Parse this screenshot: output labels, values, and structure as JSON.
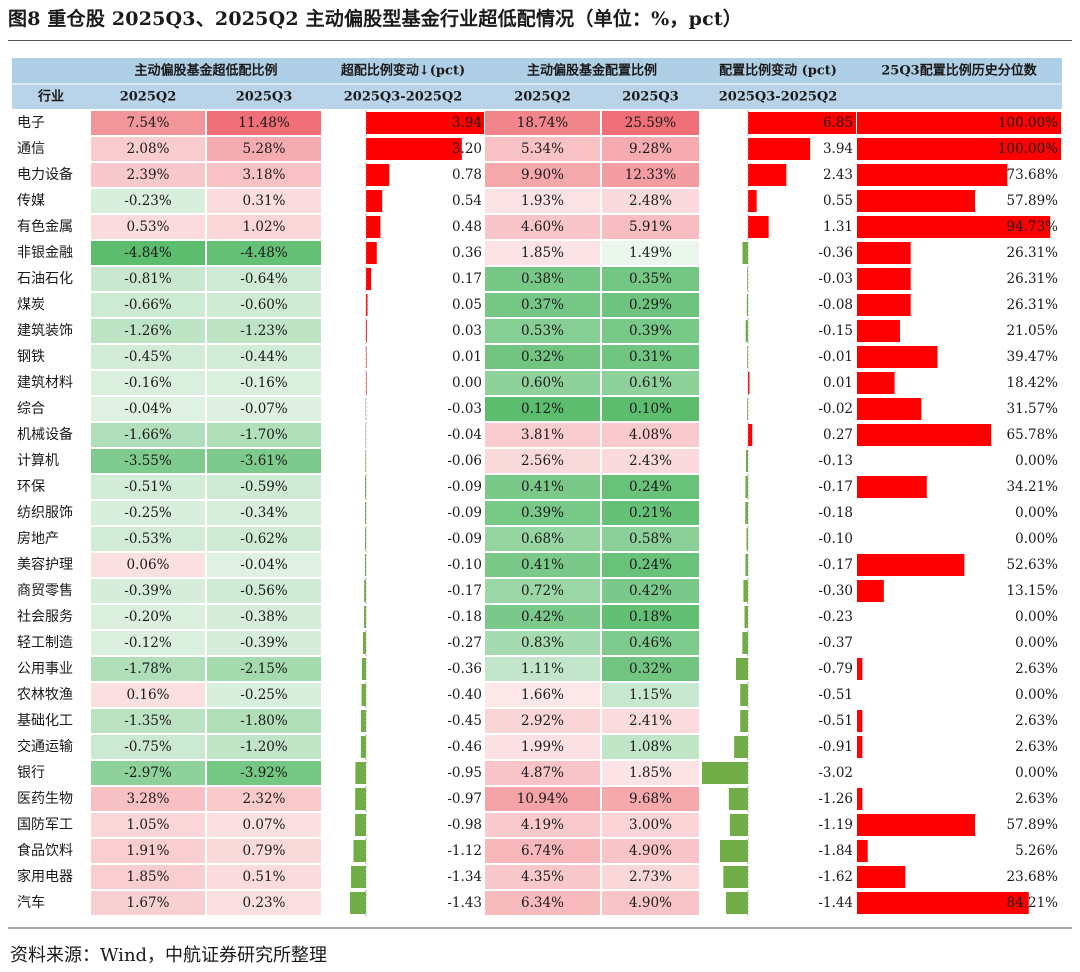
{
  "title": "图8  重仓股 2025Q3、2025Q2 主动偏股型基金行业超低配情况（单位：%，pct）",
  "source": "资料来源：Wind，中航证券研究所整理",
  "colors": {
    "header_bg": "#afcfe6",
    "header_bg2": "#b9d3e8",
    "pos_strong": "#ee6f76",
    "neg_strong": "#5cbd6e",
    "bar_red": "#ff0000",
    "bar_green": "#70ad47"
  },
  "chart_data": {
    "type": "table",
    "header_groups": [
      "主动偏股基金超低配比例",
      "超配比例变动↓(pct)",
      "主动偏股基金配置比例",
      "配置比例变动 (pct)",
      "25Q3配置比例历史分位数"
    ],
    "columns": [
      "行业",
      "2025Q2",
      "2025Q3",
      "2025Q3-2025Q2",
      "2025Q2",
      "2025Q3",
      "2025Q3-2025Q2",
      ""
    ],
    "rows": [
      {
        "industry": "电子",
        "ow_q2": "7.54%",
        "ow_q3": "11.48%",
        "ow_chg": "3.94",
        "al_q2": "18.74%",
        "al_q3": "25.59%",
        "al_chg": "6.85",
        "pct": "100.00%"
      },
      {
        "industry": "通信",
        "ow_q2": "2.08%",
        "ow_q3": "5.28%",
        "ow_chg": "3.20",
        "al_q2": "5.34%",
        "al_q3": "9.28%",
        "al_chg": "3.94",
        "pct": "100.00%"
      },
      {
        "industry": "电力设备",
        "ow_q2": "2.39%",
        "ow_q3": "3.18%",
        "ow_chg": "0.78",
        "al_q2": "9.90%",
        "al_q3": "12.33%",
        "al_chg": "2.43",
        "pct": "73.68%"
      },
      {
        "industry": "传媒",
        "ow_q2": "-0.23%",
        "ow_q3": "0.31%",
        "ow_chg": "0.54",
        "al_q2": "1.93%",
        "al_q3": "2.48%",
        "al_chg": "0.55",
        "pct": "57.89%"
      },
      {
        "industry": "有色金属",
        "ow_q2": "0.53%",
        "ow_q3": "1.02%",
        "ow_chg": "0.48",
        "al_q2": "4.60%",
        "al_q3": "5.91%",
        "al_chg": "1.31",
        "pct": "94.73%"
      },
      {
        "industry": "非银金融",
        "ow_q2": "-4.84%",
        "ow_q3": "-4.48%",
        "ow_chg": "0.36",
        "al_q2": "1.85%",
        "al_q3": "1.49%",
        "al_chg": "-0.36",
        "pct": "26.31%"
      },
      {
        "industry": "石油石化",
        "ow_q2": "-0.81%",
        "ow_q3": "-0.64%",
        "ow_chg": "0.17",
        "al_q2": "0.38%",
        "al_q3": "0.35%",
        "al_chg": "-0.03",
        "pct": "26.31%"
      },
      {
        "industry": "煤炭",
        "ow_q2": "-0.66%",
        "ow_q3": "-0.60%",
        "ow_chg": "0.05",
        "al_q2": "0.37%",
        "al_q3": "0.29%",
        "al_chg": "-0.08",
        "pct": "26.31%"
      },
      {
        "industry": "建筑装饰",
        "ow_q2": "-1.26%",
        "ow_q3": "-1.23%",
        "ow_chg": "0.03",
        "al_q2": "0.53%",
        "al_q3": "0.39%",
        "al_chg": "-0.15",
        "pct": "21.05%"
      },
      {
        "industry": "钢铁",
        "ow_q2": "-0.45%",
        "ow_q3": "-0.44%",
        "ow_chg": "0.01",
        "al_q2": "0.32%",
        "al_q3": "0.31%",
        "al_chg": "-0.01",
        "pct": "39.47%"
      },
      {
        "industry": "建筑材料",
        "ow_q2": "-0.16%",
        "ow_q3": "-0.16%",
        "ow_chg": "0.00",
        "al_q2": "0.60%",
        "al_q3": "0.61%",
        "al_chg": "0.01",
        "pct": "18.42%"
      },
      {
        "industry": "综合",
        "ow_q2": "-0.04%",
        "ow_q3": "-0.07%",
        "ow_chg": "-0.03",
        "al_q2": "0.12%",
        "al_q3": "0.10%",
        "al_chg": "-0.02",
        "pct": "31.57%"
      },
      {
        "industry": "机械设备",
        "ow_q2": "-1.66%",
        "ow_q3": "-1.70%",
        "ow_chg": "-0.04",
        "al_q2": "3.81%",
        "al_q3": "4.08%",
        "al_chg": "0.27",
        "pct": "65.78%"
      },
      {
        "industry": "计算机",
        "ow_q2": "-3.55%",
        "ow_q3": "-3.61%",
        "ow_chg": "-0.06",
        "al_q2": "2.56%",
        "al_q3": "2.43%",
        "al_chg": "-0.13",
        "pct": "0.00%"
      },
      {
        "industry": "环保",
        "ow_q2": "-0.51%",
        "ow_q3": "-0.59%",
        "ow_chg": "-0.09",
        "al_q2": "0.41%",
        "al_q3": "0.24%",
        "al_chg": "-0.17",
        "pct": "34.21%"
      },
      {
        "industry": "纺织服饰",
        "ow_q2": "-0.25%",
        "ow_q3": "-0.34%",
        "ow_chg": "-0.09",
        "al_q2": "0.39%",
        "al_q3": "0.21%",
        "al_chg": "-0.18",
        "pct": "0.00%"
      },
      {
        "industry": "房地产",
        "ow_q2": "-0.53%",
        "ow_q3": "-0.62%",
        "ow_chg": "-0.09",
        "al_q2": "0.68%",
        "al_q3": "0.58%",
        "al_chg": "-0.10",
        "pct": "0.00%"
      },
      {
        "industry": "美容护理",
        "ow_q2": "0.06%",
        "ow_q3": "-0.04%",
        "ow_chg": "-0.10",
        "al_q2": "0.41%",
        "al_q3": "0.24%",
        "al_chg": "-0.17",
        "pct": "52.63%"
      },
      {
        "industry": "商贸零售",
        "ow_q2": "-0.39%",
        "ow_q3": "-0.56%",
        "ow_chg": "-0.17",
        "al_q2": "0.72%",
        "al_q3": "0.42%",
        "al_chg": "-0.30",
        "pct": "13.15%"
      },
      {
        "industry": "社会服务",
        "ow_q2": "-0.20%",
        "ow_q3": "-0.38%",
        "ow_chg": "-0.18",
        "al_q2": "0.42%",
        "al_q3": "0.18%",
        "al_chg": "-0.23",
        "pct": "0.00%"
      },
      {
        "industry": "轻工制造",
        "ow_q2": "-0.12%",
        "ow_q3": "-0.39%",
        "ow_chg": "-0.27",
        "al_q2": "0.83%",
        "al_q3": "0.46%",
        "al_chg": "-0.37",
        "pct": "0.00%"
      },
      {
        "industry": "公用事业",
        "ow_q2": "-1.78%",
        "ow_q3": "-2.15%",
        "ow_chg": "-0.36",
        "al_q2": "1.11%",
        "al_q3": "0.32%",
        "al_chg": "-0.79",
        "pct": "2.63%"
      },
      {
        "industry": "农林牧渔",
        "ow_q2": "0.16%",
        "ow_q3": "-0.25%",
        "ow_chg": "-0.40",
        "al_q2": "1.66%",
        "al_q3": "1.15%",
        "al_chg": "-0.51",
        "pct": "0.00%"
      },
      {
        "industry": "基础化工",
        "ow_q2": "-1.35%",
        "ow_q3": "-1.80%",
        "ow_chg": "-0.45",
        "al_q2": "2.92%",
        "al_q3": "2.41%",
        "al_chg": "-0.51",
        "pct": "2.63%"
      },
      {
        "industry": "交通运输",
        "ow_q2": "-0.75%",
        "ow_q3": "-1.20%",
        "ow_chg": "-0.46",
        "al_q2": "1.99%",
        "al_q3": "1.08%",
        "al_chg": "-0.91",
        "pct": "2.63%"
      },
      {
        "industry": "银行",
        "ow_q2": "-2.97%",
        "ow_q3": "-3.92%",
        "ow_chg": "-0.95",
        "al_q2": "4.87%",
        "al_q3": "1.85%",
        "al_chg": "-3.02",
        "pct": "0.00%"
      },
      {
        "industry": "医药生物",
        "ow_q2": "3.28%",
        "ow_q3": "2.32%",
        "ow_chg": "-0.97",
        "al_q2": "10.94%",
        "al_q3": "9.68%",
        "al_chg": "-1.26",
        "pct": "2.63%"
      },
      {
        "industry": "国防军工",
        "ow_q2": "1.05%",
        "ow_q3": "0.07%",
        "ow_chg": "-0.98",
        "al_q2": "4.19%",
        "al_q3": "3.00%",
        "al_chg": "-1.19",
        "pct": "57.89%"
      },
      {
        "industry": "食品饮料",
        "ow_q2": "1.91%",
        "ow_q3": "0.79%",
        "ow_chg": "-1.12",
        "al_q2": "6.74%",
        "al_q3": "4.90%",
        "al_chg": "-1.84",
        "pct": "5.26%"
      },
      {
        "industry": "家用电器",
        "ow_q2": "1.85%",
        "ow_q3": "0.51%",
        "ow_chg": "-1.34",
        "al_q2": "4.35%",
        "al_q3": "2.73%",
        "al_chg": "-1.62",
        "pct": "23.68%"
      },
      {
        "industry": "汽车",
        "ow_q2": "1.67%",
        "ow_q3": "0.23%",
        "ow_chg": "-1.43",
        "al_q2": "6.34%",
        "al_q3": "4.90%",
        "al_chg": "-1.44",
        "pct": "84.21%"
      }
    ]
  }
}
